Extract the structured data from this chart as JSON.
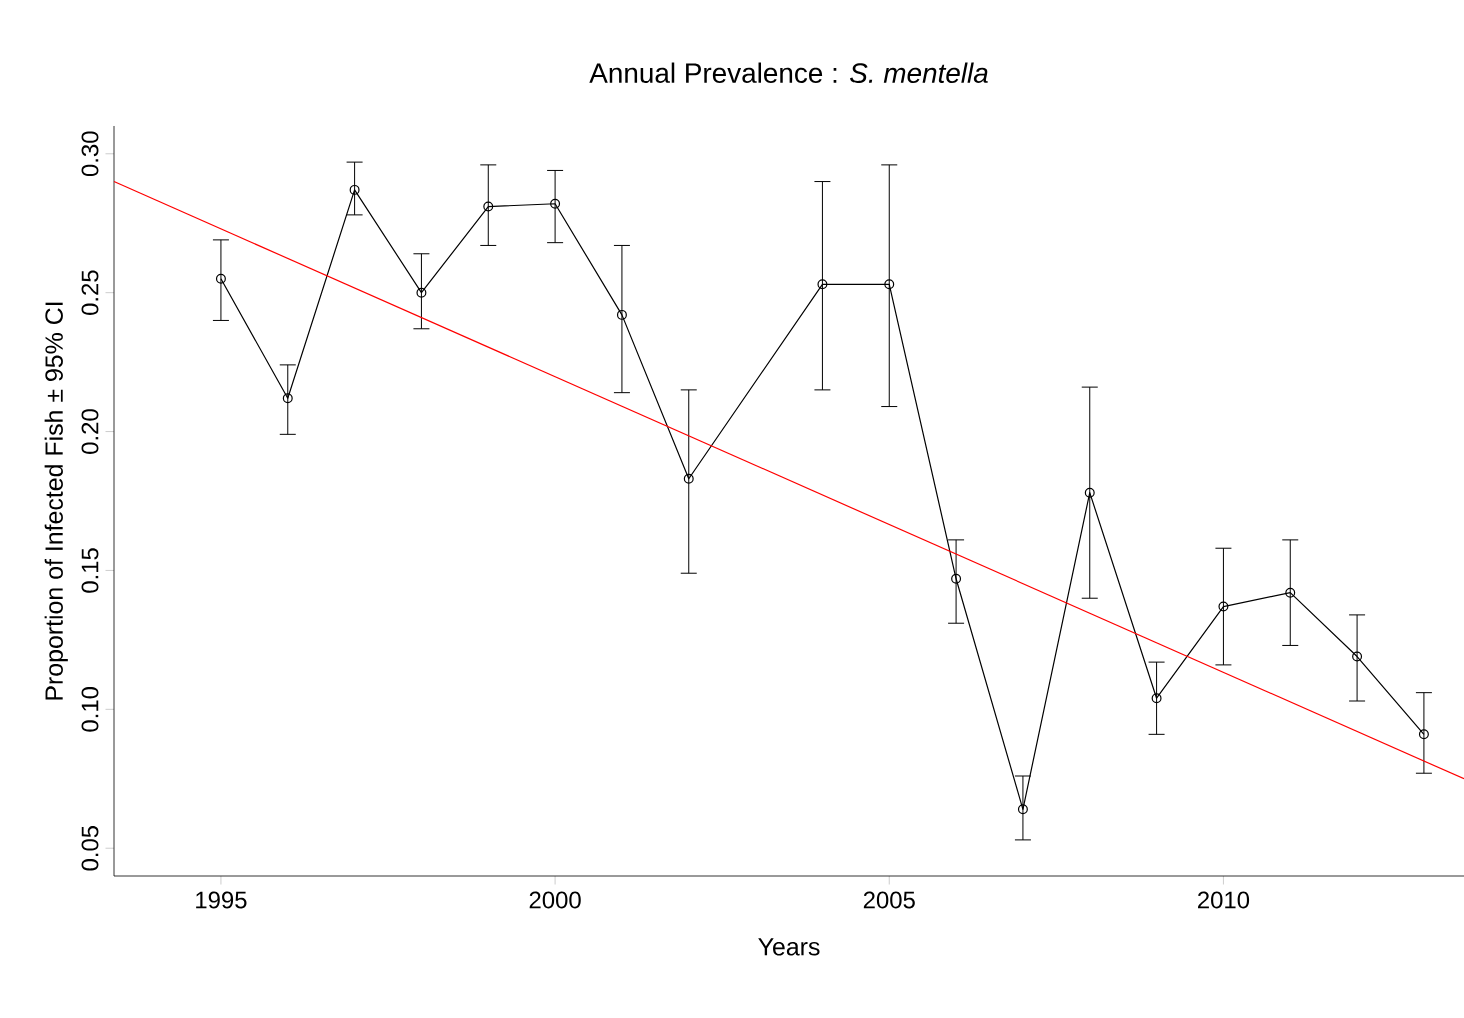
{
  "chart_data": {
    "type": "line",
    "title": "Annual Prevalence : *S. mentella*",
    "xlabel": "Years",
    "ylabel": "Proportion of Infected Fish ± 95% CI",
    "xlim": [
      1993.4,
      2013.6
    ],
    "ylim": [
      0.04,
      0.31
    ],
    "xticks": [
      1995,
      2000,
      2005,
      2010
    ],
    "yticks": [
      0.05,
      {
        "value": 0.1,
        "label": "0.10"
      },
      0.15,
      {
        "value": 0.2,
        "label": "0.20"
      },
      0.25,
      {
        "value": 0.3,
        "label": "0.30"
      }
    ],
    "series": [
      {
        "color": "#000000",
        "marker": "circle",
        "line_style": "solid",
        "x": [
          1995,
          1996,
          1997,
          1998,
          1999,
          2000,
          2001,
          2002,
          2004,
          2005,
          2006,
          2007,
          2008,
          2009,
          2010,
          2011,
          2012,
          2013
        ],
        "values": [
          0.255,
          0.212,
          0.287,
          0.25,
          0.281,
          0.282,
          0.242,
          0.183,
          0.253,
          0.253,
          0.147,
          0.064,
          0.178,
          0.104,
          0.137,
          0.142,
          0.119,
          0.091
        ],
        "errors": [
          [
            0.24,
            0.269
          ],
          [
            0.199,
            0.224
          ],
          [
            0.278,
            0.297
          ],
          [
            0.237,
            0.264
          ],
          [
            0.267,
            0.296
          ],
          [
            0.268,
            0.294
          ],
          [
            0.214,
            0.267
          ],
          [
            0.149,
            0.215
          ],
          [
            0.215,
            0.29
          ],
          [
            0.209,
            0.296
          ],
          [
            0.131,
            0.161
          ],
          [
            0.053,
            0.076
          ],
          [
            0.14,
            0.216
          ],
          [
            0.091,
            0.117
          ],
          [
            0.116,
            0.158
          ],
          [
            0.123,
            0.161
          ],
          [
            0.103,
            0.134
          ],
          [
            0.077,
            0.106
          ]
        ]
      },
      {
        "color": "#ff0000",
        "marker": "none",
        "line_style": "solid",
        "x": [
          1993.4,
          2013.6
        ],
        "values": [
          0.29,
          0.075
        ]
      }
    ]
  }
}
